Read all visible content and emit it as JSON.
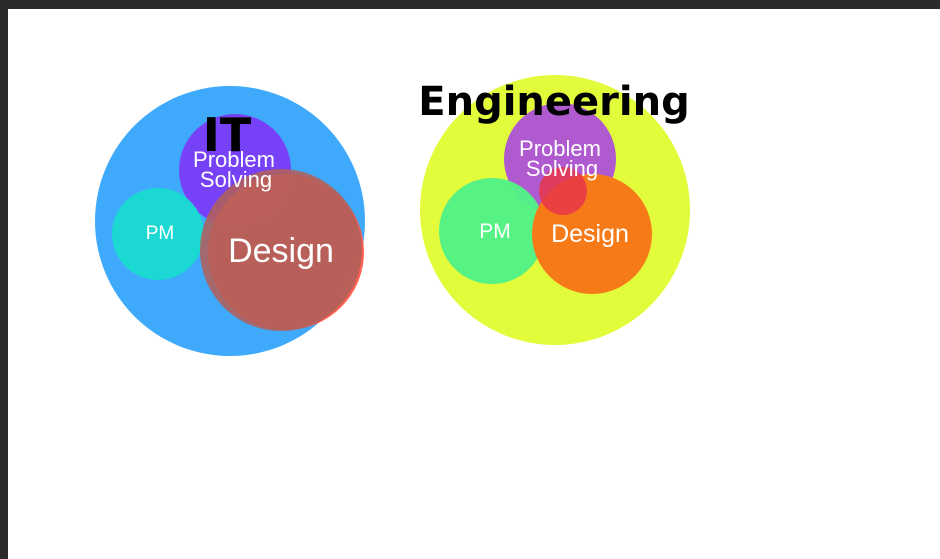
{
  "diagrams": [
    {
      "title": "IT",
      "outer_color": "#3fa9fb",
      "circles": [
        {
          "label_lines": [
            "Problem",
            "Solving"
          ],
          "color": "#7a3cf7"
        },
        {
          "label_lines": [
            "PM"
          ],
          "color": "#19dbd0"
        },
        {
          "label_lines": [
            "Design"
          ],
          "color": "#ff5a4a"
        }
      ]
    },
    {
      "title": "Engineering",
      "outer_color": "#e2fb3b",
      "circles": [
        {
          "label_lines": [
            "Problem",
            "Solving"
          ],
          "color": "#b05ad0"
        },
        {
          "label_lines": [
            "PM"
          ],
          "color": "#52f286"
        },
        {
          "label_lines": [
            "Design"
          ],
          "color": "#f77a18"
        }
      ]
    }
  ]
}
